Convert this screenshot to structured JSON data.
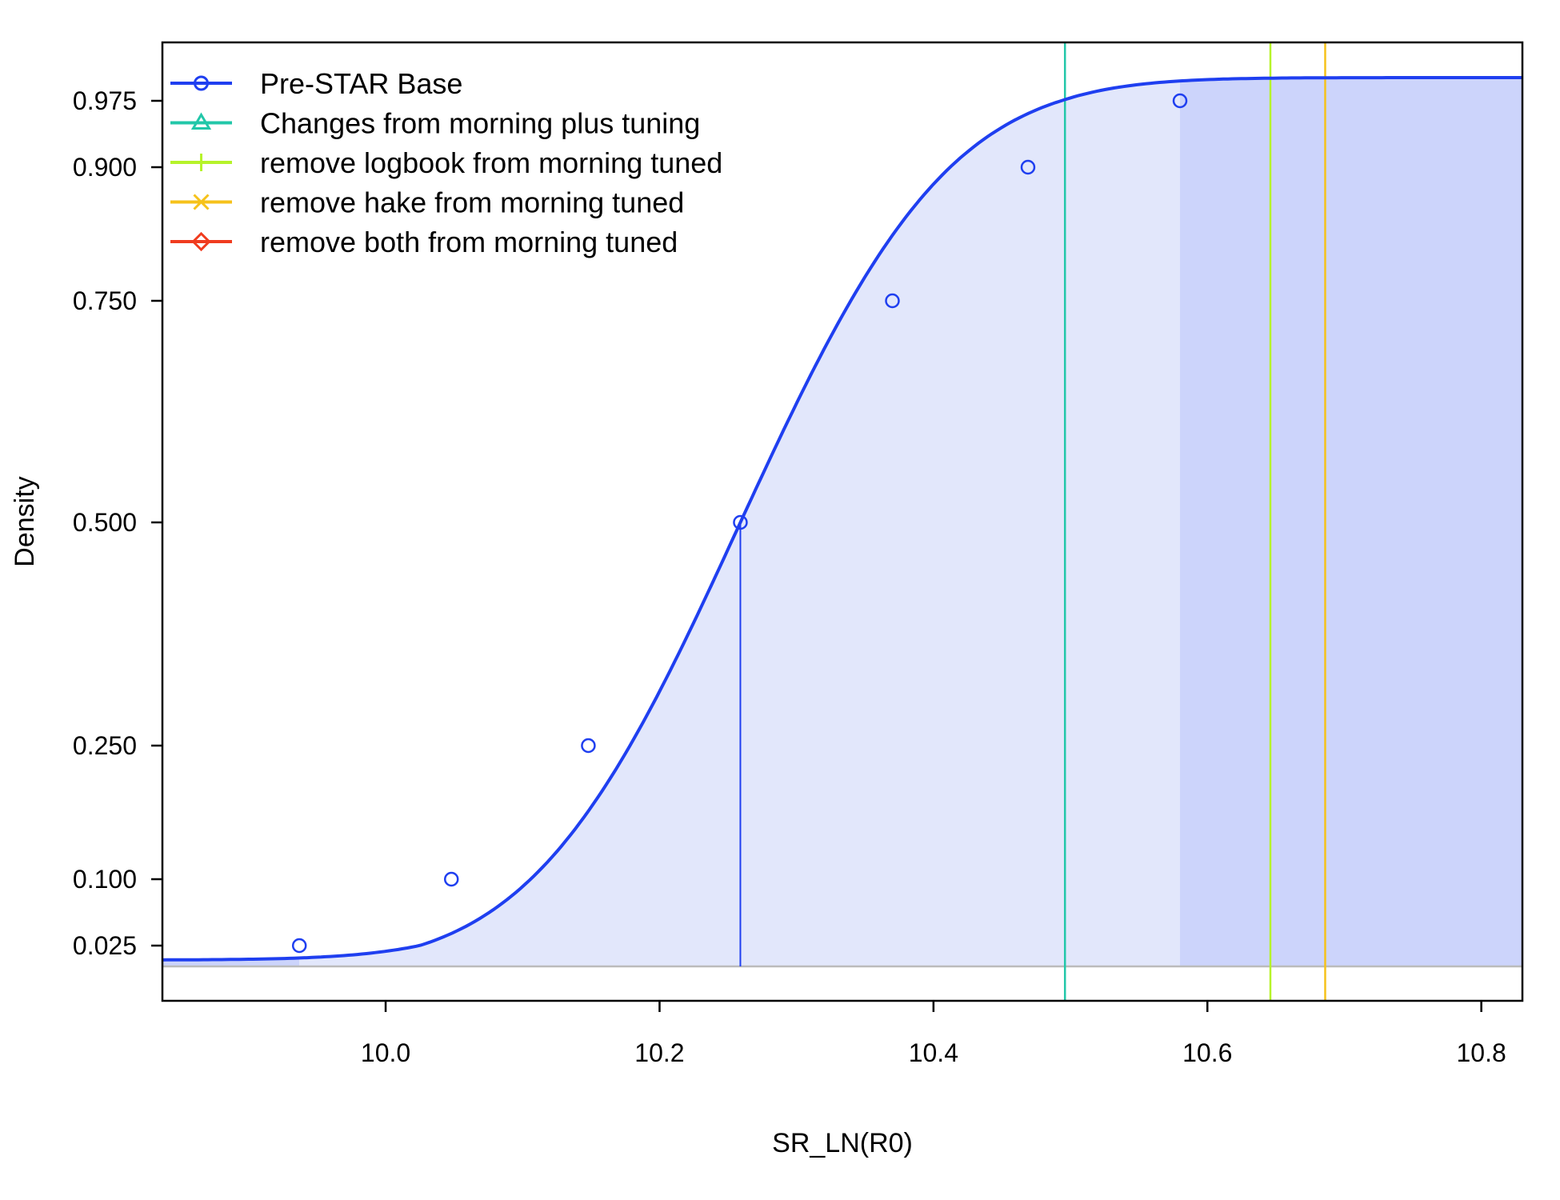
{
  "chart_data": {
    "type": "line",
    "title": "",
    "xlabel": "SR_LN(R0)",
    "ylabel": "Density",
    "xlim": [
      9.837,
      10.83
    ],
    "ylim": [
      -0.05,
      1.03
    ],
    "x_ticks": [
      "10.0",
      "10.2",
      "10.4",
      "10.6",
      "10.8"
    ],
    "x_tick_values": [
      10.0,
      10.2,
      10.4,
      10.6,
      10.8
    ],
    "y_ticks": [
      "0.025",
      "0.100",
      "0.250",
      "0.500",
      "0.750",
      "0.900",
      "0.975"
    ],
    "y_tick_values": [
      0.025,
      0.1,
      0.25,
      0.5,
      0.75,
      0.9,
      0.975
    ],
    "y_scale": "probit-like cumulative",
    "grid": false,
    "legend_position": "top-left",
    "legend": [
      {
        "name": "Pre-STAR Base",
        "color": "#1f3ff0",
        "marker": "circle"
      },
      {
        "name": "Changes from morning plus tuning",
        "color": "#22c7a9",
        "marker": "triangle"
      },
      {
        "name": "remove logbook from morning tuned",
        "color": "#b6f32a",
        "marker": "plus"
      },
      {
        "name": "remove hake from morning tuned",
        "color": "#f6c21b",
        "marker": "cross"
      },
      {
        "name": "remove both from morning tuned",
        "color": "#f03c1f",
        "marker": "diamond"
      }
    ],
    "series": [
      {
        "name": "Pre-STAR Base",
        "color": "#1f3ff0",
        "mean": 10.259,
        "sd": 0.1195,
        "points": [
          {
            "x": 9.937,
            "y": 0.025
          },
          {
            "x": 10.048,
            "y": 0.1
          },
          {
            "x": 10.148,
            "y": 0.25
          },
          {
            "x": 10.259,
            "y": 0.5
          },
          {
            "x": 10.37,
            "y": 0.75
          },
          {
            "x": 10.469,
            "y": 0.9
          },
          {
            "x": 10.58,
            "y": 0.975
          }
        ],
        "median_x": 10.259,
        "interval_lower": 9.937,
        "interval_upper": 10.58
      }
    ],
    "vertical_lines": [
      {
        "name": "Changes from morning plus tuning",
        "x": 10.496,
        "color": "#22c7a9"
      },
      {
        "name": "remove logbook from morning tuned",
        "x": 10.646,
        "color": "#b6f32a"
      },
      {
        "name": "remove hake from morning tuned",
        "x": 10.686,
        "color": "#f6c21b"
      }
    ],
    "shading": {
      "light_fill": "#e2e7fb",
      "dark_fill": "#ccd4fb",
      "baseline_color": "#bbbbbb"
    }
  }
}
